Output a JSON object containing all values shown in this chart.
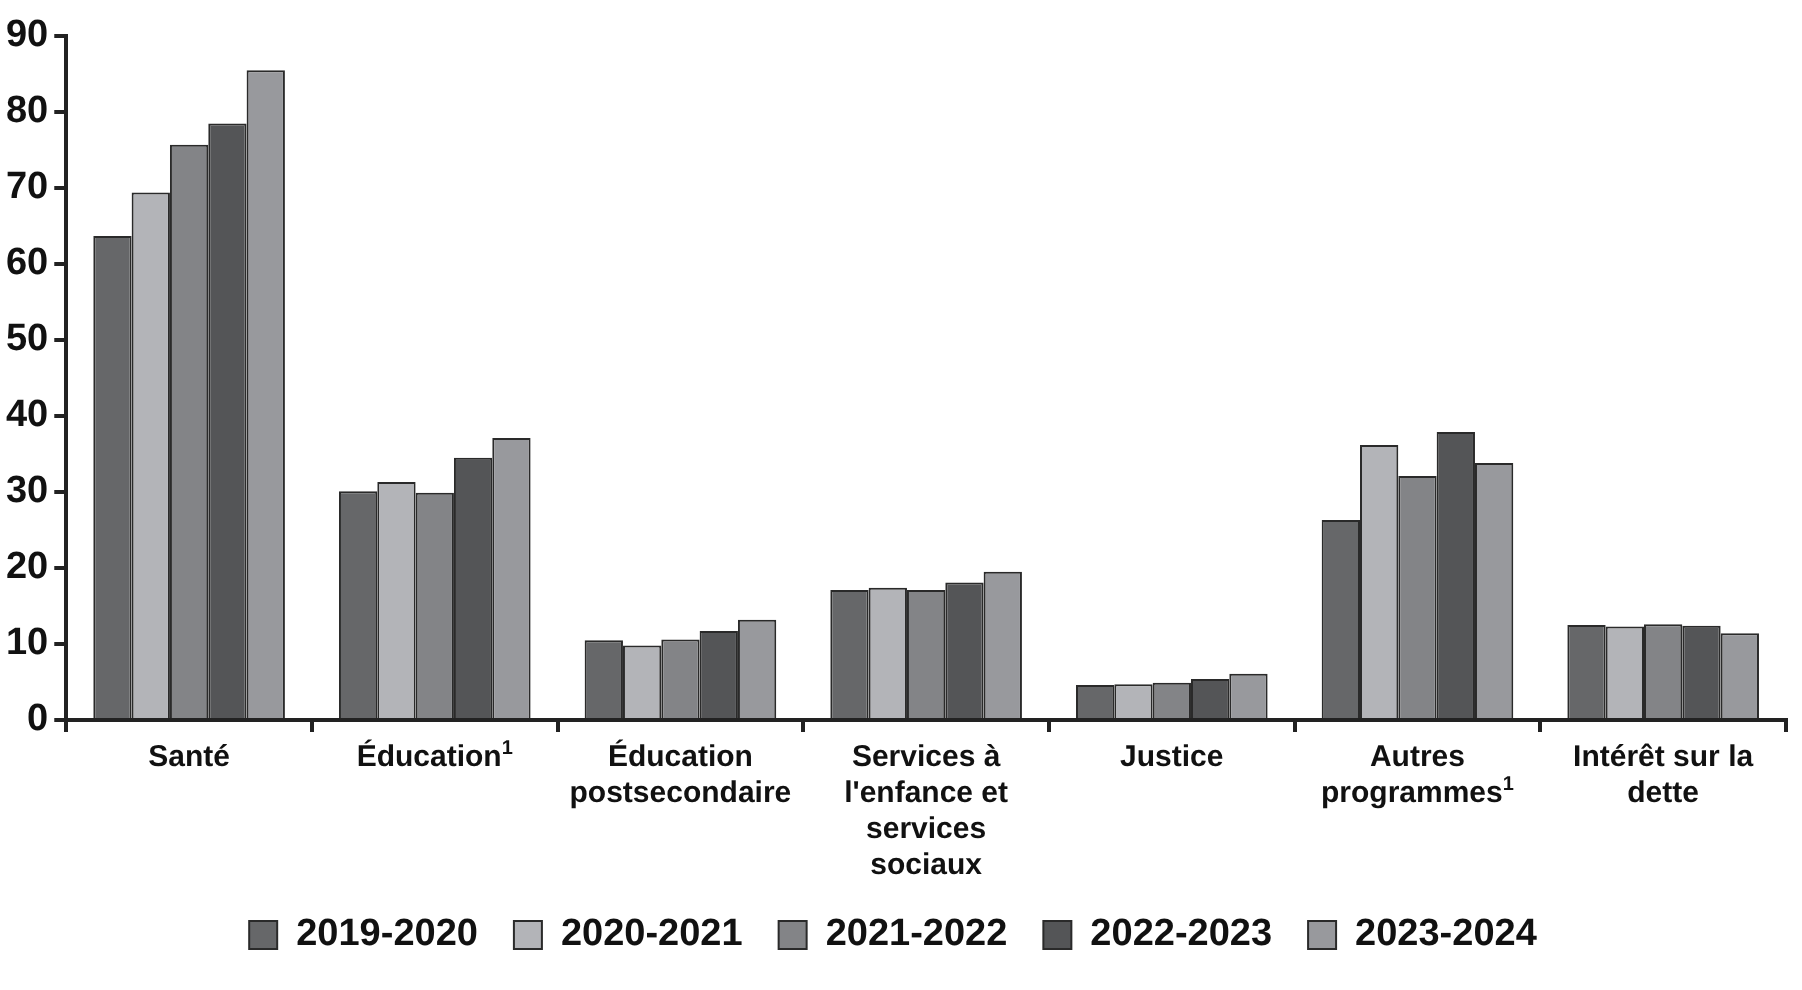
{
  "chart_data": {
    "type": "bar",
    "categories": [
      "Santé",
      "Éducation$^{1}$",
      "Éducation postsecondaire",
      "Services à l'enfance et services sociaux",
      "Justice",
      "Autres programmes$^{1}$",
      "Intérêt sur la dette"
    ],
    "series": [
      {
        "name": "2019-2020",
        "color": "#666769",
        "values": [
          63.7,
          30.1,
          10.5,
          17.1,
          4.6,
          26.3,
          12.5
        ]
      },
      {
        "name": "2020-2021",
        "color": "#b3b4b8",
        "values": [
          69.4,
          31.3,
          9.8,
          17.4,
          4.7,
          36.2,
          12.3
        ]
      },
      {
        "name": "2021-2022",
        "color": "#838487",
        "values": [
          75.7,
          29.9,
          10.6,
          17.1,
          4.9,
          32.1,
          12.6
        ]
      },
      {
        "name": "2022-2023",
        "color": "#545557",
        "values": [
          78.5,
          34.5,
          11.7,
          18.1,
          5.4,
          37.9,
          12.4
        ]
      },
      {
        "name": "2023-2024",
        "color": "#98999d",
        "values": [
          85.5,
          37.1,
          13.2,
          19.5,
          6.1,
          33.8,
          11.4
        ]
      }
    ],
    "ylim": [
      0,
      90
    ],
    "yticks": [
      0,
      10,
      20,
      30,
      40,
      50,
      60,
      70,
      80,
      90
    ],
    "grid": false,
    "legend": "bottom"
  }
}
